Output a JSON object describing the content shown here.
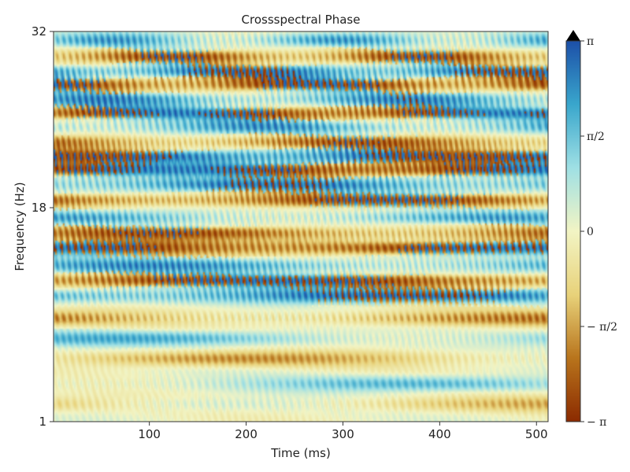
{
  "chart_data": {
    "type": "heatmap",
    "title": "Crossspectral Phase",
    "xlabel": "Time (ms)",
    "ylabel": "Frequency (Hz)",
    "xlim": [
      1,
      512
    ],
    "ylim": [
      1,
      32
    ],
    "x_ticks": [
      100,
      200,
      300,
      400,
      500
    ],
    "y_ticks": [
      1,
      18,
      32
    ],
    "colorbar": {
      "min": -3.14159,
      "max": 3.14159,
      "ticks": [
        {
          "value": -3.14159,
          "label": "− π"
        },
        {
          "value": -1.5708,
          "label": "− π/2"
        },
        {
          "value": 0,
          "label": "0"
        },
        {
          "value": 1.5708,
          "label": "π/2"
        },
        {
          "value": 3.14159,
          "label": "π"
        }
      ],
      "extend": "max",
      "colors": [
        "#8b2a00",
        "#b8741c",
        "#e8d27a",
        "#f2f4c4",
        "#9fe0e4",
        "#39a6cc",
        "#1c4fa8"
      ]
    },
    "bands": [
      {
        "f": 31.3,
        "phase": 1.3,
        "chirp": 1.0
      },
      {
        "f": 30.0,
        "phase": -1.9,
        "chirp": 0.9
      },
      {
        "f": 28.8,
        "phase": 2.2,
        "chirp": 1.4
      },
      {
        "f": 27.8,
        "phase": -2.3,
        "chirp": 0.6
      },
      {
        "f": 26.6,
        "phase": 1.6,
        "chirp": 1.1
      },
      {
        "f": 25.5,
        "phase": -2.8,
        "chirp": 1.3
      },
      {
        "f": 24.4,
        "phase": 1.4,
        "chirp": 0.7
      },
      {
        "f": 23.2,
        "phase": -1.7,
        "chirp": 1.6
      },
      {
        "f": 22.1,
        "phase": 2.6,
        "chirp": 0.9
      },
      {
        "f": 21.0,
        "phase": -2.9,
        "chirp": 1.2
      },
      {
        "f": 19.8,
        "phase": 1.9,
        "chirp": 0.8
      },
      {
        "f": 18.6,
        "phase": -2.1,
        "chirp": 1.5
      },
      {
        "f": 17.2,
        "phase": 1.2,
        "chirp": 1.0
      },
      {
        "f": 16.0,
        "phase": -1.8,
        "chirp": 1.3
      },
      {
        "f": 14.8,
        "phase": -2.6,
        "chirp": 0.7
      },
      {
        "f": 13.4,
        "phase": 1.5,
        "chirp": 1.2
      },
      {
        "f": 12.2,
        "phase": -2.4,
        "chirp": 0.9
      },
      {
        "f": 11.0,
        "phase": 2.1,
        "chirp": 1.1
      },
      {
        "f": 9.2,
        "phase": -1.2,
        "chirp": 0.8
      },
      {
        "f": 7.6,
        "phase": 1.1,
        "chirp": 1.0
      },
      {
        "f": 6.0,
        "phase": -0.9,
        "chirp": 0.6
      },
      {
        "f": 4.0,
        "phase": 0.8,
        "chirp": 0.5
      },
      {
        "f": 2.4,
        "phase": -0.6,
        "chirp": 0.4
      }
    ]
  }
}
